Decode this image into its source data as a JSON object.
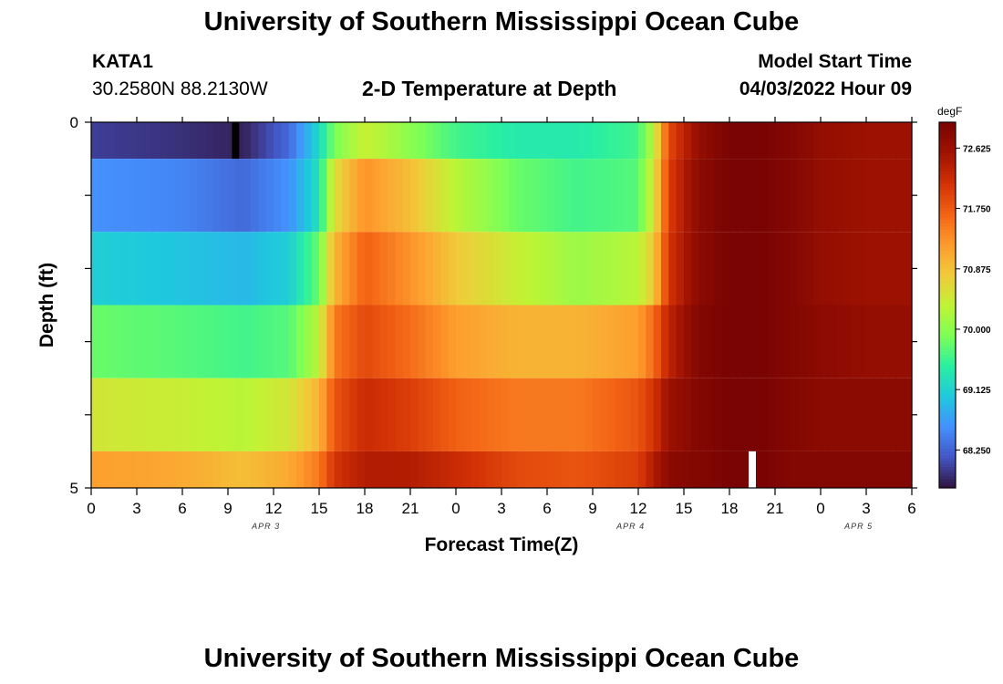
{
  "header": {
    "title": "University of Southern Mississippi Ocean Cube",
    "station": "KATA1",
    "coordinates": "30.2580N  88.2130W",
    "chart_title": "2-D Temperature at Depth",
    "model_start_label": "Model Start Time",
    "model_start_value": "04/03/2022 Hour 09"
  },
  "footer": {
    "title": "University of Southern Mississippi Ocean Cube"
  },
  "chart_data": {
    "type": "heatmap",
    "title": "2-D Temperature at Depth",
    "xlabel": "Forecast Time(Z)",
    "ylabel": "Depth (ft)",
    "x_tick_labels": [
      "0",
      "3",
      "6",
      "9",
      "12",
      "15",
      "18",
      "21",
      "0",
      "3",
      "6",
      "9",
      "12",
      "15",
      "18",
      "21",
      "0",
      "3",
      "6"
    ],
    "date_labels": [
      {
        "label": "APR 3",
        "at_hour": 11.5
      },
      {
        "label": "APR 4",
        "at_hour": 35.5
      },
      {
        "label": "APR 5",
        "at_hour": 50.5
      }
    ],
    "x_range_hours": [
      0,
      54
    ],
    "y_tick_labels": [
      "0",
      "5"
    ],
    "y_range_ft": [
      0,
      5
    ],
    "colorbar": {
      "unit": "degF",
      "tick_labels": [
        "72.625",
        "71.750",
        "70.875",
        "70.000",
        "69.125",
        "68.250"
      ],
      "ticks": [
        72.625,
        71.75,
        70.875,
        70.0,
        69.125,
        68.25
      ],
      "range": [
        67.7,
        73.0
      ],
      "colors": [
        "#30123b",
        "#4454c4",
        "#4490fe",
        "#1fc8de",
        "#29efa2",
        "#7dff56",
        "#c1f334",
        "#f1ca3a",
        "#fe9b2d",
        "#f36315",
        "#d23105",
        "#a01201",
        "#7a0403"
      ]
    },
    "depth_layers_ft": [
      [
        0,
        0.5
      ],
      [
        0.5,
        1.5
      ],
      [
        1.5,
        2.5
      ],
      [
        2.5,
        3.5
      ],
      [
        3.5,
        4.5
      ],
      [
        4.5,
        5.0
      ]
    ],
    "time_hours": [
      0,
      6,
      10,
      13,
      15,
      16,
      18,
      21,
      24,
      28,
      32,
      36,
      37,
      38,
      40,
      42,
      44,
      46,
      48,
      51,
      54
    ],
    "series": [
      {
        "depth_layer": "0-0.5 ft",
        "values": [
          68.0,
          67.9,
          67.8,
          68.3,
          69.2,
          69.9,
          70.4,
          70.0,
          69.6,
          69.4,
          69.4,
          69.6,
          70.3,
          71.9,
          72.7,
          73.0,
          73.0,
          72.9,
          72.7,
          72.6,
          72.6
        ]
      },
      {
        "depth_layer": "0.5-1.5 ft",
        "values": [
          68.6,
          68.5,
          68.3,
          68.6,
          69.3,
          70.6,
          71.3,
          70.9,
          70.3,
          69.8,
          69.6,
          69.7,
          70.5,
          72.0,
          72.8,
          73.0,
          73.0,
          72.9,
          72.7,
          72.6,
          72.6
        ]
      },
      {
        "depth_layer": "1.5-2.5 ft",
        "values": [
          69.1,
          69.0,
          68.9,
          69.1,
          69.8,
          71.0,
          71.7,
          71.3,
          70.8,
          70.4,
          70.1,
          70.3,
          70.8,
          72.1,
          72.8,
          73.0,
          73.0,
          72.9,
          72.7,
          72.6,
          72.6
        ]
      },
      {
        "depth_layer": "2.5-3.5 ft",
        "values": [
          69.8,
          69.7,
          69.6,
          69.7,
          70.3,
          71.5,
          71.9,
          71.6,
          71.2,
          71.0,
          71.0,
          71.2,
          71.6,
          72.3,
          72.9,
          73.0,
          73.0,
          72.9,
          72.8,
          72.7,
          72.7
        ]
      },
      {
        "depth_layer": "3.5-4.5 ft",
        "values": [
          70.5,
          70.4,
          70.3,
          70.5,
          71.0,
          71.8,
          72.2,
          72.0,
          71.7,
          71.5,
          71.5,
          71.8,
          72.1,
          72.6,
          72.9,
          73.0,
          73.0,
          72.9,
          72.8,
          72.8,
          72.8
        ]
      },
      {
        "depth_layer": "4.5-5.0 ft",
        "values": [
          71.2,
          71.1,
          70.9,
          71.1,
          71.5,
          72.1,
          72.4,
          72.4,
          72.2,
          71.9,
          71.8,
          72.0,
          72.4,
          72.8,
          72.9,
          73.0,
          73.0,
          72.9,
          72.9,
          72.9,
          72.9
        ]
      }
    ],
    "markers": [
      {
        "name": "model-start-marker",
        "hour": 9.5,
        "depth_ft": [
          0,
          0.5
        ],
        "color": "#000000"
      },
      {
        "name": "white-marker",
        "hour": 43.5,
        "depth_ft": [
          4.5,
          5.0
        ],
        "color": "#ffffff"
      }
    ]
  }
}
